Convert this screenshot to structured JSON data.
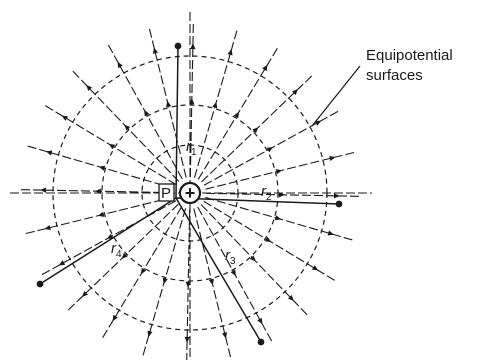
{
  "figure": {
    "caption_label": {
      "line1": "Equipotential",
      "line2": "surfaces"
    },
    "point_label": "P",
    "charge_symbol": "+",
    "radius_labels": {
      "r1": {
        "main": "r",
        "sub": "1"
      },
      "r2": {
        "main": "r",
        "sub": "2"
      },
      "r3": {
        "main": "r",
        "sub": "3"
      },
      "r4": {
        "main": "r",
        "sub": "4"
      }
    },
    "field_line_count": 24,
    "equipotential_circle_count": 3,
    "colors": {
      "ink": "#1a1a1a",
      "background": "#ffffff"
    }
  }
}
